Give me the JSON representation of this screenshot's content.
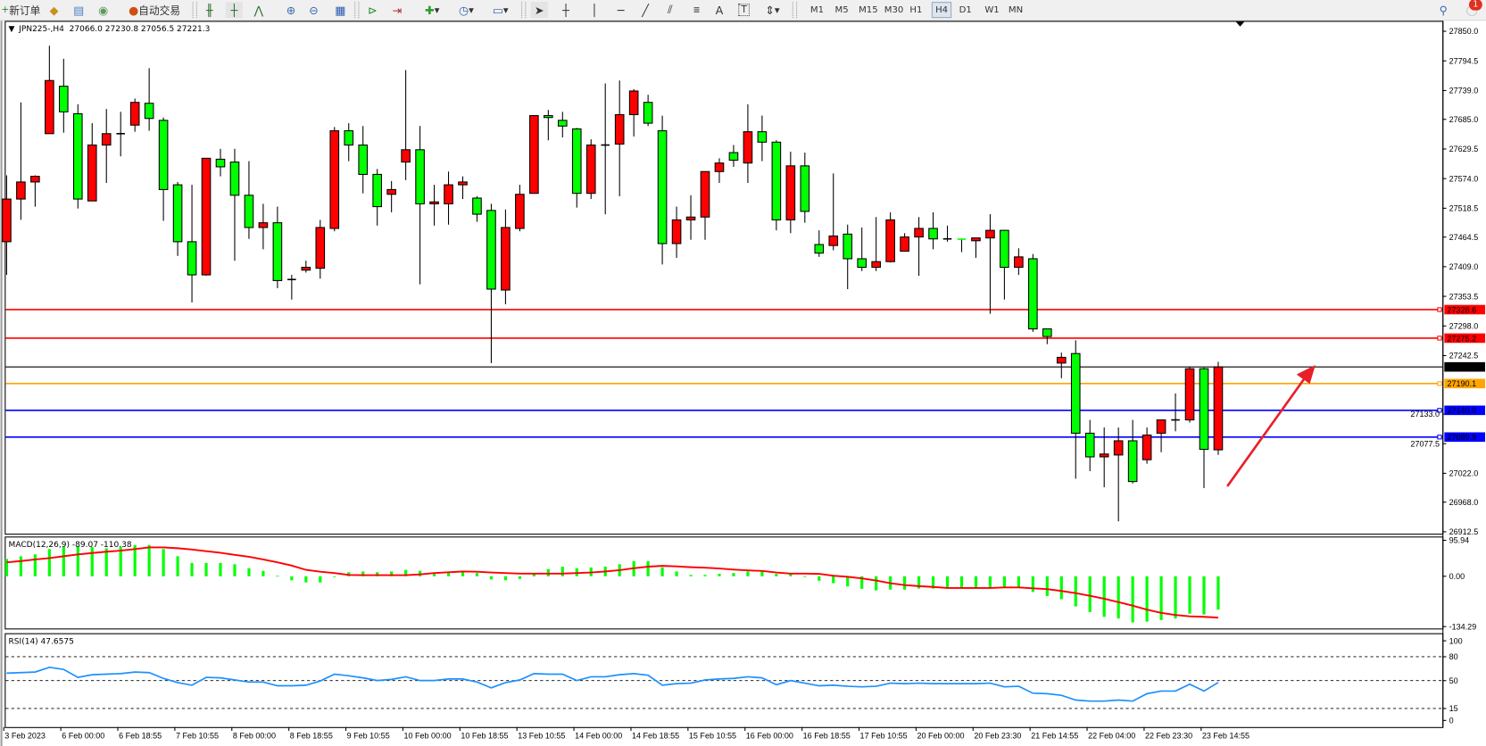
{
  "toolbar": {
    "new_order": "新订单",
    "auto_trading": "自动交易",
    "drawing_text_tool": "A",
    "label_tool": "T",
    "periods": [
      "M1",
      "M5",
      "M15",
      "M30",
      "H1",
      "H4",
      "D1",
      "W1",
      "MN"
    ],
    "active_period": "H4",
    "notification_count": "1"
  },
  "chart": {
    "symbol_info": "JPN225-,H4  27066.0 27230.8 27056.5 27221.3",
    "bid_price": "27221.3",
    "colors": {
      "bull": "#ff0000",
      "bear": "#00ff00",
      "outline": "#000000",
      "macd_hist": "#00ff00",
      "macd_signal": "#ff0000",
      "rsi": "#1e90ff"
    }
  },
  "chart_data": [
    {
      "type": "candlestick",
      "symbol": "JPN225-",
      "timeframe": "H4",
      "ylim": [
        26908.9,
        27869.5
      ],
      "y_tick_labels": [
        "27850.0",
        "27794.5",
        "27739.0",
        "27685.0",
        "27629.5",
        "27574.0",
        "27518.5",
        "27464.5",
        "27409.0",
        "27353.5",
        "27298.0",
        "27242.5",
        "27133.0",
        "27077.5",
        "27022.0",
        "26968.0",
        "26912.5"
      ],
      "x_tick_labels": [
        "3 Feb 2023",
        "6 Feb 00:00",
        "6 Feb 18:55",
        "7 Feb 10:55",
        "8 Feb 00:00",
        "8 Feb 18:55",
        "9 Feb 10:55",
        "10 Feb 00:00",
        "10 Feb 18:55",
        "13 Feb 10:55",
        "14 Feb 00:00",
        "14 Feb 18:55",
        "15 Feb 10:55",
        "16 Feb 00:00",
        "16 Feb 18:55",
        "17 Feb 10:55",
        "20 Feb 00:00",
        "20 Feb 23:30",
        "21 Feb 14:55",
        "22 Feb 04:00",
        "22 Feb 23:30",
        "23 Feb 14:55"
      ],
      "x_tick_every_bars": 4,
      "ohlc_fields": [
        "open",
        "high",
        "low",
        "close"
      ],
      "ohlc": [
        [
          27455.8,
          27580.1,
          27393.7,
          27535.7
        ],
        [
          27535.7,
          27716.8,
          27496.7,
          27567.7
        ],
        [
          27567.7,
          27580.1,
          27521.5,
          27578.3
        ],
        [
          27658.2,
          27823.0,
          27658.2,
          27757.7
        ],
        [
          27747.0,
          27798.5,
          27660.0,
          27699.1
        ],
        [
          27695.5,
          27713.3,
          27518.0,
          27535.7
        ],
        [
          27532.2,
          27677.8,
          27532.2,
          27636.9
        ],
        [
          27636.9,
          27704.4,
          27565.9,
          27658.2
        ],
        [
          27658.2,
          27699.1,
          27615.6,
          27658.2
        ],
        [
          27674.2,
          27724.0,
          27661.8,
          27716.8
        ],
        [
          27715.1,
          27780.8,
          27663.6,
          27686.7
        ],
        [
          27683.1,
          27688.4,
          27494.9,
          27553.5
        ],
        [
          27562.4,
          27567.7,
          27429.2,
          27455.8
        ],
        [
          27455.8,
          27562.4,
          27342.2,
          27393.7
        ],
        [
          27393.7,
          27612.1,
          27391.9,
          27612.1
        ],
        [
          27610.3,
          27629.8,
          27578.3,
          27596.1
        ],
        [
          27605.0,
          27629.8,
          27420.1,
          27542.8
        ],
        [
          27542.8,
          27606.7,
          27461.1,
          27482.4
        ],
        [
          27482.4,
          27526.8,
          27441.6,
          27491.3
        ],
        [
          27491.3,
          27521.5,
          27368.8,
          27383.0
        ],
        [
          27385.0,
          27393.7,
          27347.5,
          27385.0
        ],
        [
          27402.6,
          27420.3,
          27398.0,
          27407.9
        ],
        [
          27406.1,
          27496.7,
          27386.5,
          27482.4
        ],
        [
          27480.7,
          27670.7,
          27475.3,
          27663.6
        ],
        [
          27663.6,
          27677.8,
          27606.7,
          27636.9
        ],
        [
          27636.9,
          27672.4,
          27546.4,
          27581.9
        ],
        [
          27581.9,
          27592.0,
          27486.0,
          27521.5
        ],
        [
          27544.6,
          27569.5,
          27510.9,
          27553.5
        ],
        [
          27605.0,
          27777.2,
          27571.2,
          27628.1
        ],
        [
          27628.1,
          27672.4,
          27375.9,
          27526.8
        ],
        [
          27526.8,
          27562.4,
          27486.0,
          27530.4
        ],
        [
          27526.8,
          27587.2,
          27487.8,
          27562.4
        ],
        [
          27562.4,
          27578.3,
          27535.7,
          27567.7
        ],
        [
          27537.5,
          27541.1,
          27493.1,
          27507.3
        ],
        [
          27514.4,
          27526.8,
          27228.5,
          27367.0
        ],
        [
          27365.3,
          27516.2,
          27338.6,
          27482.4
        ],
        [
          27480.7,
          27562.4,
          27475.3,
          27544.6
        ],
        [
          27546.4,
          27692.0,
          27546.4,
          27692.0
        ],
        [
          27692.0,
          27702.6,
          27645.8,
          27688.4
        ],
        [
          27683.1,
          27699.1,
          27651.1,
          27672.4
        ],
        [
          27667.1,
          27668.9,
          27519.7,
          27546.4
        ],
        [
          27546.4,
          27647.6,
          27535.7,
          27636.9
        ],
        [
          27636.9,
          27752.3,
          27507.3,
          27636.9
        ],
        [
          27638.7,
          27757.7,
          27541.1,
          27693.8
        ],
        [
          27693.8,
          27741.7,
          27652.9,
          27738.1
        ],
        [
          27716.8,
          27731.0,
          27672.4,
          27677.8
        ],
        [
          27663.6,
          27692.0,
          27413.2,
          27452.3
        ],
        [
          27452.3,
          27521.5,
          27425.6,
          27496.7
        ],
        [
          27496.7,
          27542.8,
          27459.4,
          27502.0
        ],
        [
          27502.0,
          27587.2,
          27459.4,
          27587.2
        ],
        [
          27587.2,
          27612.1,
          27565.9,
          27603.2
        ],
        [
          27622.7,
          27636.9,
          27596.1,
          27608.5
        ],
        [
          27603.2,
          27713.3,
          27565.9,
          27661.8
        ],
        [
          27661.8,
          27692.0,
          27606.7,
          27642.3
        ],
        [
          27642.3,
          27645.8,
          27477.1,
          27496.7
        ],
        [
          27496.7,
          27624.5,
          27471.8,
          27597.9
        ],
        [
          27597.9,
          27622.7,
          27491.3,
          27512.6
        ],
        [
          27450.5,
          27477.1,
          27427.4,
          27434.5
        ],
        [
          27448.7,
          27583.7,
          27439.8,
          27466.5
        ],
        [
          27470.0,
          27487.8,
          27367.0,
          27423.9
        ],
        [
          27423.9,
          27482.4,
          27400.8,
          27407.9
        ],
        [
          27407.9,
          27502.0,
          27400.8,
          27418.5
        ],
        [
          27418.5,
          27510.9,
          27416.8,
          27496.7
        ],
        [
          27438.1,
          27471.8,
          27438.1,
          27464.7
        ],
        [
          27464.7,
          27502.0,
          27391.9,
          27480.7
        ],
        [
          27480.7,
          27510.9,
          27441.6,
          27461.1
        ],
        [
          27461.1,
          27486.0,
          27455.8,
          27461.1
        ],
        [
          27461.1,
          27461.1,
          27436.3,
          27460.6
        ],
        [
          27457.6,
          27462.9,
          27425.6,
          27462.9
        ],
        [
          27462.9,
          27507.3,
          27320.9,
          27477.1
        ],
        [
          27477.1,
          27477.1,
          27347.5,
          27407.9
        ],
        [
          27407.9,
          27443.4,
          27393.7,
          27427.4
        ],
        [
          27423.9,
          27432.8,
          27287.0,
          27292.5
        ],
        [
          27292.5,
          27292.5,
          27264.0,
          27278.2
        ],
        [
          27228.5,
          27248.1,
          27200.1,
          27239.2
        ],
        [
          27246.3,
          27271.2,
          27011.9,
          27097.1
        ],
        [
          27097.1,
          27122.0,
          27026.1,
          27052.8
        ],
        [
          27052.8,
          27107.8,
          26995.9,
          27058.1
        ],
        [
          27056.3,
          27107.8,
          26932.0,
          27082.9
        ],
        [
          27082.9,
          27122.0,
          27003.0,
          27006.6
        ],
        [
          27047.5,
          27107.8,
          27040.0,
          27093.6
        ],
        [
          27097.1,
          27122.0,
          27061.5,
          27122.0
        ],
        [
          27122.0,
          27171.7,
          27100.7,
          27122.0
        ],
        [
          27122.0,
          27222.0,
          27117.0,
          27217.9
        ],
        [
          27217.9,
          27220.0,
          26994.2,
          27066.9
        ],
        [
          27066.0,
          27230.8,
          27056.5,
          27221.3
        ]
      ],
      "horizontal_lines": [
        {
          "price": 27328.6,
          "label": "27328.6",
          "color": "#ff0000"
        },
        {
          "price": 27275.2,
          "label": "27275.2",
          "color": "#ff0000"
        },
        {
          "price": 27221.3,
          "label": "27221.3",
          "color": "#000000"
        },
        {
          "price": 27190.1,
          "label": "27190.1",
          "color": "#ffa500"
        },
        {
          "price": 27140.0,
          "label": "27140.0",
          "color": "#0000ff"
        },
        {
          "price": 27089.9,
          "label": "27089.9",
          "color": "#0000ff"
        }
      ]
    },
    {
      "type": "bar",
      "indicator": "MACD",
      "label": "MACD(12,26,9) -89.07 -110.38",
      "ylim": [
        -134.29,
        95.94
      ],
      "y_tick_labels": [
        "95.94",
        "0.00",
        "-134.29"
      ],
      "y_tick_values": [
        95.94,
        0,
        -134.29
      ],
      "histogram": [
        46.3,
        53.4,
        58.4,
        72.7,
        78.4,
        79.8,
        78.4,
        74.8,
        78.4,
        83.4,
        83.4,
        72.7,
        53.4,
        35.6,
        35.6,
        35.6,
        32.1,
        21.4,
        14.3,
        1.4,
        -10.7,
        -16.4,
        -16.4,
        -1.4,
        10.7,
        12.8,
        10.7,
        12.8,
        17.1,
        14.3,
        8.6,
        8.6,
        10.7,
        8.6,
        -8.6,
        -10.7,
        -7.1,
        8.6,
        19.2,
        25.7,
        21.4,
        23.5,
        25.7,
        32.1,
        40.6,
        40.6,
        23.5,
        12.8,
        3.6,
        3.6,
        6.4,
        8.6,
        12.8,
        12.8,
        6.4,
        6.4,
        -1.4,
        -12.1,
        -18.5,
        -27.1,
        -33.5,
        -37.8,
        -35.6,
        -35.6,
        -32.8,
        -32.8,
        -29.2,
        -29.2,
        -29.2,
        -29.2,
        -29.2,
        -31.4,
        -42.0,
        -52.7,
        -61.3,
        -80.5,
        -95.5,
        -108.3,
        -112.6,
        -123.3,
        -121.1,
        -116.9,
        -112.6,
        -99.8,
        -101.9,
        -89.07
      ],
      "signal": [
        37.1,
        40.6,
        44.9,
        48.5,
        53.4,
        58.4,
        62.0,
        65.6,
        68.4,
        72.7,
        77.0,
        77.0,
        74.8,
        71.3,
        67.0,
        62.7,
        57.0,
        52.0,
        44.9,
        37.1,
        28.5,
        17.1,
        12.1,
        8.6,
        3.6,
        2.9,
        2.9,
        2.9,
        2.9,
        5.0,
        8.6,
        10.7,
        12.8,
        12.1,
        10.0,
        8.6,
        7.1,
        7.1,
        7.1,
        7.1,
        8.6,
        10.0,
        12.8,
        16.4,
        21.4,
        25.7,
        27.8,
        26.4,
        24.2,
        22.8,
        20.7,
        17.8,
        15.7,
        14.3,
        10.0,
        7.1,
        7.1,
        6.4,
        1.4,
        -1.4,
        -5.7,
        -11.4,
        -18.5,
        -23.5,
        -26.4,
        -28.5,
        -31.4,
        -31.4,
        -31.4,
        -31.4,
        -29.9,
        -29.9,
        -32.1,
        -34.2,
        -39.2,
        -44.9,
        -52.0,
        -59.9,
        -69.1,
        -78.4,
        -89.1,
        -97.6,
        -103.3,
        -106.9,
        -108.3,
        -110.38
      ]
    },
    {
      "type": "line",
      "indicator": "RSI",
      "label": "RSI(14) 47.6575",
      "ylim": [
        0,
        100
      ],
      "y_tick_labels": [
        "100",
        "80",
        "50",
        "15",
        "0"
      ],
      "y_tick_values": [
        100,
        80,
        50,
        15,
        0
      ],
      "levels": [
        80,
        50,
        15
      ],
      "values": [
        59.4,
        60.1,
        60.8,
        66.7,
        64.1,
        54.1,
        57.4,
        58.1,
        58.8,
        60.8,
        60.1,
        52.8,
        47.5,
        44.2,
        54.1,
        53.5,
        50.8,
        48.2,
        48.2,
        43.5,
        43.5,
        44.2,
        49.5,
        58.1,
        56.1,
        53.5,
        50.1,
        51.5,
        54.8,
        50.1,
        50.1,
        52.1,
        52.1,
        48.2,
        40.9,
        47.5,
        50.8,
        58.8,
        58.1,
        58.1,
        50.1,
        54.8,
        54.8,
        57.4,
        58.8,
        56.8,
        44.2,
        46.2,
        46.8,
        50.8,
        52.1,
        52.8,
        54.8,
        53.5,
        44.8,
        50.1,
        46.8,
        43.5,
        44.2,
        42.9,
        42.2,
        42.9,
        46.8,
        46.2,
        46.8,
        46.2,
        46.2,
        46.2,
        46.2,
        46.8,
        42.2,
        42.9,
        34.2,
        33.6,
        31.6,
        25.6,
        24.3,
        24.3,
        25.6,
        24.3,
        33.6,
        36.9,
        36.9,
        45.5,
        36.9,
        47.66
      ]
    }
  ]
}
